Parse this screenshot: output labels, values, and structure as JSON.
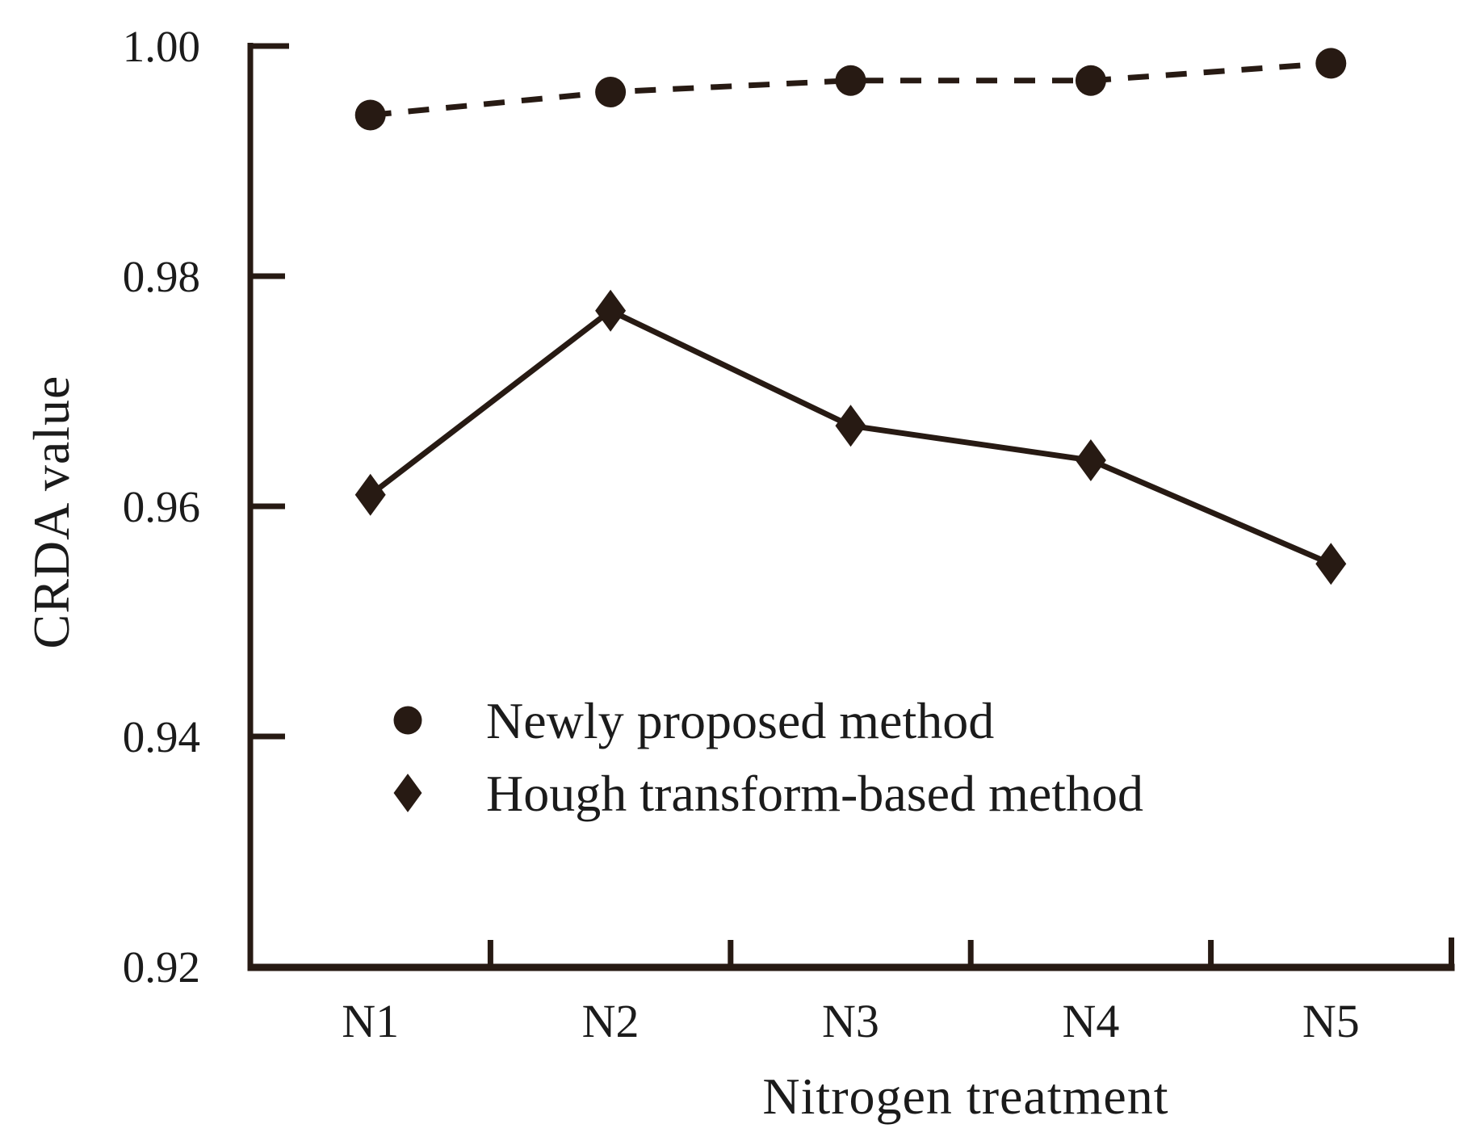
{
  "figure": {
    "background": "#ffffff",
    "ink_color": "#271a13",
    "text_color": "#1b1b1b"
  },
  "chart_data": {
    "type": "line",
    "title": "",
    "xlabel": "Nitrogen treatment",
    "ylabel": "CRDA value",
    "categories": [
      "N1",
      "N2",
      "N3",
      "N4",
      "N5"
    ],
    "series": [
      {
        "name": "Newly proposed method",
        "marker": "circle",
        "line_style": "dashed",
        "values": [
          0.994,
          0.996,
          0.997,
          0.997,
          0.9985
        ]
      },
      {
        "name": "Hough transform-based method",
        "marker": "diamond",
        "line_style": "solid",
        "values": [
          0.961,
          0.977,
          0.967,
          0.964,
          0.955
        ]
      }
    ],
    "ylim": [
      0.92,
      1.0
    ],
    "yticks": [
      "1.00",
      "0.98",
      "0.96",
      "0.94",
      "0.92"
    ],
    "ytick_values": [
      1.0,
      0.98,
      0.96,
      0.94,
      0.92
    ],
    "grid": false,
    "legend_position": "inside-lower-center"
  }
}
